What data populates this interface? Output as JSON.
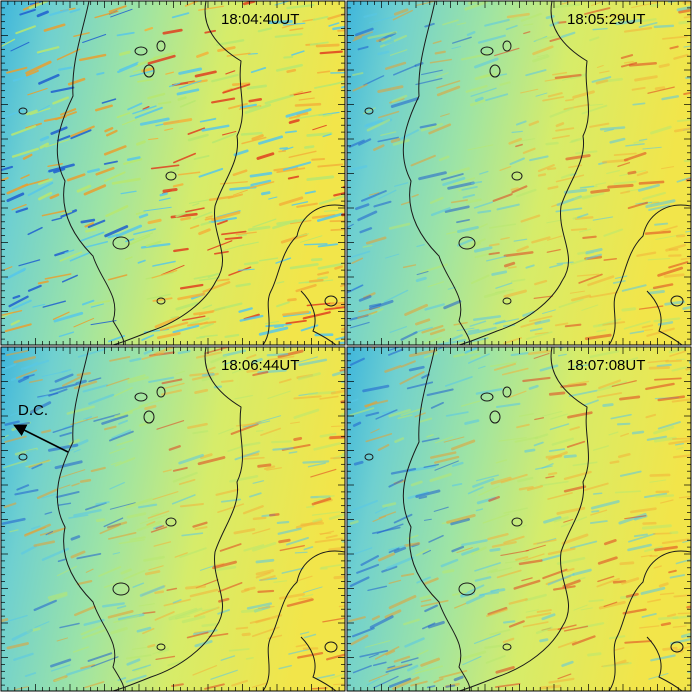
{
  "panels": [
    {
      "time": "18:04:40UT"
    },
    {
      "time": "18:05:29UT"
    },
    {
      "time": "18:06:44UT"
    },
    {
      "time": "18:07:08UT"
    }
  ],
  "annotation": "D.C."
}
